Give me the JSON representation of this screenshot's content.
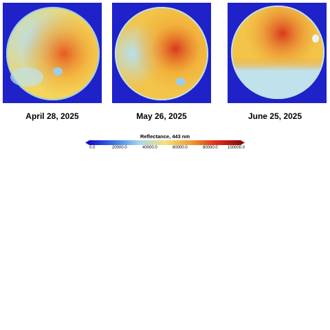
{
  "panels": [
    {
      "date": "April 28, 2025"
    },
    {
      "date": "May 26, 2025"
    },
    {
      "date": "June 25, 2025"
    }
  ],
  "colorbar": {
    "title": "Reflectance, 443 nm",
    "ticks": [
      "0.0",
      "20000.0",
      "40000.0",
      "60000.0",
      "80000.0",
      "100000.0"
    ],
    "colors": [
      "#1010c8",
      "#3c78e0",
      "#a8d8ec",
      "#f4e07c",
      "#f0a030",
      "#e03018",
      "#8c0c0c"
    ],
    "background": "#1e22c8"
  }
}
